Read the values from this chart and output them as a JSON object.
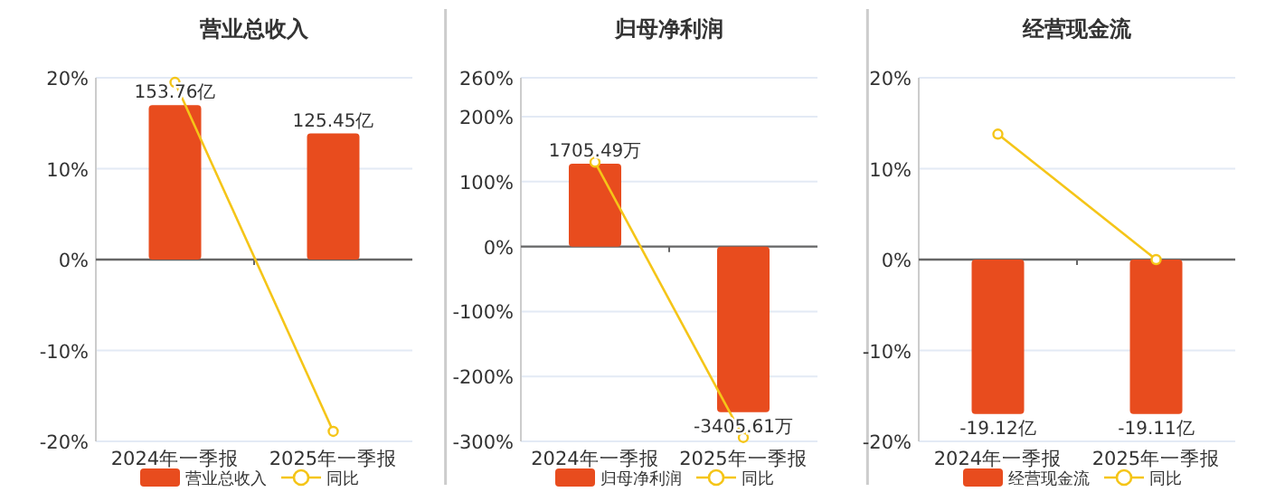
{
  "chart_data": [
    {
      "type": "bar",
      "title": "营业总收入",
      "categories": [
        "2024年一季报",
        "2025年一季报"
      ],
      "series": [
        {
          "name": "营业总收入",
          "axis": "y2",
          "color": "#e84c1e",
          "values": [
            153.76,
            125.45
          ],
          "value_labels": [
            "153.76亿",
            "125.45亿"
          ]
        },
        {
          "name": "同比",
          "type": "line",
          "color": "#f5c518",
          "marker": "circle",
          "values": [
            19.5,
            -18.9
          ]
        }
      ],
      "ylim": [
        -20,
        20
      ],
      "yticks": [
        {
          "value": -20,
          "label": "-20%"
        },
        {
          "value": -10,
          "label": "-10%"
        },
        {
          "value": 0,
          "label": "0%"
        },
        {
          "value": 10,
          "label": "10%"
        },
        {
          "value": 20,
          "label": "20%"
        }
      ],
      "grid": "y",
      "legend": "bottom"
    },
    {
      "type": "bar",
      "title": "归母净利润",
      "categories": [
        "2024年一季报",
        "2025年一季报"
      ],
      "series": [
        {
          "name": "归母净利润",
          "axis": "y2",
          "color": "#e84c1e",
          "values": [
            1705.49,
            -3405.61
          ],
          "value_labels": [
            "1705.49万",
            "-3405.61万"
          ]
        },
        {
          "name": "同比",
          "type": "line",
          "color": "#f5c518",
          "marker": "circle",
          "values": [
            130,
            -294
          ]
        }
      ],
      "ylim": [
        -300,
        260
      ],
      "yticks": [
        {
          "value": -300,
          "label": "-300%"
        },
        {
          "value": -200,
          "label": "-200%"
        },
        {
          "value": -100,
          "label": "-100%"
        },
        {
          "value": 0,
          "label": "0%"
        },
        {
          "value": 100,
          "label": "100%"
        },
        {
          "value": 200,
          "label": "200%"
        },
        {
          "value": 260,
          "label": "260%"
        }
      ],
      "grid": "y",
      "legend": "bottom"
    },
    {
      "type": "bar",
      "title": "经营现金流",
      "categories": [
        "2024年一季报",
        "2025年一季报"
      ],
      "series": [
        {
          "name": "经营现金流",
          "axis": "y2",
          "color": "#e84c1e",
          "values": [
            -19.12,
            -19.11
          ],
          "value_labels": [
            "-19.12亿",
            "-19.11亿"
          ]
        },
        {
          "name": "同比",
          "type": "line",
          "color": "#f5c518",
          "marker": "circle",
          "values": [
            13.8,
            0
          ]
        }
      ],
      "ylim": [
        -20,
        20
      ],
      "yticks": [
        {
          "value": -20,
          "label": "-20%"
        },
        {
          "value": -10,
          "label": "-10%"
        },
        {
          "value": 0,
          "label": "0%"
        },
        {
          "value": 10,
          "label": "10%"
        },
        {
          "value": 20,
          "label": "20%"
        }
      ],
      "grid": "y",
      "legend": "bottom"
    }
  ]
}
